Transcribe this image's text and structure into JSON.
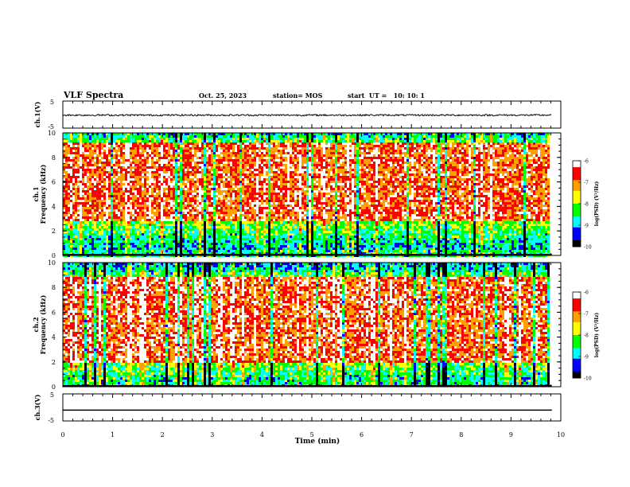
{
  "header": {
    "title": "VLF Spectra",
    "date": "Oct. 25, 2023",
    "station": "station= MOS",
    "start": "start  UT =   10: 10: 1"
  },
  "chart_data": [
    {
      "type": "line",
      "ylabel": "ch.1(V)",
      "ylim": [
        -5,
        5
      ],
      "yticks": [
        "5",
        "-5"
      ],
      "series": [
        {
          "values_note": "",
          "level": -0.2
        }
      ]
    },
    {
      "type": "heatmap",
      "ylabel": "ch.1\nFrequency (kHz)",
      "ylabel_a": "ch.1",
      "ylabel_b": "Frequency (kHz)",
      "ylim": [
        0,
        10
      ],
      "yticks": [
        "0",
        "2",
        "4",
        "6",
        "8",
        "10"
      ],
      "colorbar": {
        "label": "log(PSD) (V²/Hz)",
        "ticks": [
          "-6",
          "-7",
          "-8",
          "-9",
          "-10"
        ],
        "range": [
          -10,
          -6
        ]
      }
    },
    {
      "type": "heatmap",
      "ylabel_a": "ch.2",
      "ylabel_b": "Frequency (kHz)",
      "ylim": [
        0,
        10
      ],
      "yticks": [
        "0",
        "2",
        "4",
        "6",
        "8",
        "10"
      ],
      "colorbar": {
        "label": "log(PSD) (V²/Hz)",
        "ticks": [
          "-6",
          "-7",
          "-8",
          "-9",
          "-10"
        ],
        "range": [
          -10,
          -6
        ]
      }
    },
    {
      "type": "line",
      "ylabel": "ch.3(V)",
      "ylim": [
        -5,
        5
      ],
      "yticks": [
        "5",
        "-5"
      ],
      "series": [
        {
          "level": -1.0
        }
      ]
    }
  ],
  "xaxis": {
    "label": "Time (min)",
    "range": [
      0,
      10
    ],
    "ticks": [
      "0",
      "1",
      "2",
      "3",
      "4",
      "5",
      "6",
      "7",
      "8",
      "9",
      "10"
    ],
    "data_end": 9.82
  },
  "colors": {
    "colormap": [
      "#ffffff",
      "#ff0000",
      "#ffa000",
      "#ffff00",
      "#00ff00",
      "#00ffff",
      "#0000ff",
      "#000000"
    ]
  }
}
